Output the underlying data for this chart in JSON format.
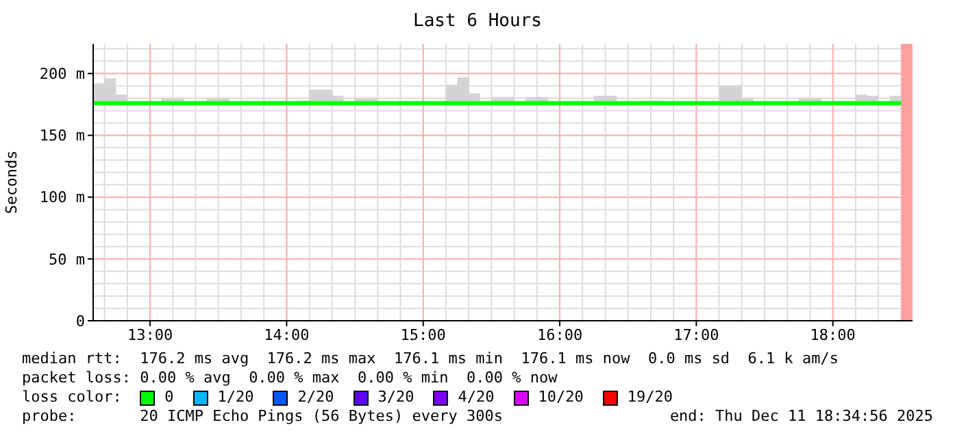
{
  "chart_data": {
    "type": "step",
    "title": "Last 6 Hours",
    "ylabel": "Seconds",
    "legend_title": "loss color:",
    "legend": "bottom",
    "grid": true,
    "x": [
      "2025-12-11T12:35",
      "2025-12-11T12:40",
      "2025-12-11T12:45",
      "2025-12-11T12:50",
      "2025-12-11T12:55",
      "2025-12-11T13:00",
      "2025-12-11T13:05",
      "2025-12-11T13:10",
      "2025-12-11T13:15",
      "2025-12-11T13:20",
      "2025-12-11T13:25",
      "2025-12-11T13:30",
      "2025-12-11T13:35",
      "2025-12-11T13:40",
      "2025-12-11T13:45",
      "2025-12-11T13:50",
      "2025-12-11T13:55",
      "2025-12-11T14:00",
      "2025-12-11T14:05",
      "2025-12-11T14:10",
      "2025-12-11T14:15",
      "2025-12-11T14:20",
      "2025-12-11T14:25",
      "2025-12-11T14:30",
      "2025-12-11T14:35",
      "2025-12-11T14:40",
      "2025-12-11T14:45",
      "2025-12-11T14:50",
      "2025-12-11T14:55",
      "2025-12-11T15:00",
      "2025-12-11T15:05",
      "2025-12-11T15:10",
      "2025-12-11T15:15",
      "2025-12-11T15:20",
      "2025-12-11T15:25",
      "2025-12-11T15:30",
      "2025-12-11T15:35",
      "2025-12-11T15:40",
      "2025-12-11T15:45",
      "2025-12-11T15:50",
      "2025-12-11T15:55",
      "2025-12-11T16:00",
      "2025-12-11T16:05",
      "2025-12-11T16:10",
      "2025-12-11T16:15",
      "2025-12-11T16:20",
      "2025-12-11T16:25",
      "2025-12-11T16:30",
      "2025-12-11T16:35",
      "2025-12-11T16:40",
      "2025-12-11T16:45",
      "2025-12-11T16:50",
      "2025-12-11T16:55",
      "2025-12-11T17:00",
      "2025-12-11T17:05",
      "2025-12-11T17:10",
      "2025-12-11T17:15",
      "2025-12-11T17:20",
      "2025-12-11T17:25",
      "2025-12-11T17:30",
      "2025-12-11T17:35",
      "2025-12-11T17:40",
      "2025-12-11T17:45",
      "2025-12-11T17:50",
      "2025-12-11T17:55",
      "2025-12-11T18:00",
      "2025-12-11T18:05",
      "2025-12-11T18:10",
      "2025-12-11T18:15",
      "2025-12-11T18:20",
      "2025-12-11T18:25",
      "2025-12-11T18:30"
    ],
    "xlim": [
      "2025-12-11T12:35",
      "2025-12-11T18:35"
    ],
    "xticks": [
      {
        "value": "2025-12-11T13:00",
        "label": "13:00"
      },
      {
        "value": "2025-12-11T14:00",
        "label": "14:00"
      },
      {
        "value": "2025-12-11T15:00",
        "label": "15:00"
      },
      {
        "value": "2025-12-11T16:00",
        "label": "16:00"
      },
      {
        "value": "2025-12-11T17:00",
        "label": "17:00"
      },
      {
        "value": "2025-12-11T18:00",
        "label": "18:00"
      }
    ],
    "ylim": [
      0,
      224
    ],
    "yticks": [
      0,
      {
        "value": 50,
        "label": "50 m"
      },
      {
        "value": 100,
        "label": "100 m"
      },
      {
        "value": 150,
        "label": "150 m"
      },
      {
        "value": 200,
        "label": "200 m"
      }
    ],
    "series": [
      {
        "name": "0",
        "color": "#00ff00",
        "values": [
          176,
          176,
          176,
          176,
          176,
          176,
          176,
          176,
          176,
          176,
          176,
          176,
          176,
          176,
          176,
          176,
          176,
          176,
          176,
          176,
          176,
          176,
          176,
          176,
          176,
          176,
          176,
          176,
          176,
          176,
          176,
          176,
          176,
          176,
          176,
          176,
          176,
          176,
          176,
          176,
          176,
          176,
          176,
          176,
          176,
          176,
          176,
          176,
          176,
          176,
          176,
          176,
          176,
          176,
          176,
          176,
          176,
          176,
          176,
          176,
          176,
          176,
          176,
          176,
          176,
          176,
          176,
          176,
          176,
          176,
          176,
          176
        ],
        "lower": [
          175,
          175,
          175,
          175,
          175,
          175,
          175,
          175,
          175,
          175,
          175,
          175,
          175,
          175,
          175,
          175,
          175,
          175,
          175,
          175,
          175,
          175,
          175,
          175,
          175,
          175,
          175,
          175,
          175,
          175,
          175,
          175,
          175,
          175,
          175,
          175,
          175,
          175,
          175,
          175,
          175,
          175,
          175,
          175,
          175,
          175,
          175,
          175,
          175,
          175,
          175,
          175,
          175,
          175,
          175,
          175,
          175,
          175,
          175,
          175,
          175,
          175,
          175,
          175,
          175,
          175,
          175,
          175,
          175,
          175,
          175,
          175
        ],
        "upper": [
          192,
          196,
          183,
          177,
          177,
          177,
          180,
          180,
          177,
          177,
          180,
          180,
          177,
          177,
          177,
          177,
          177,
          177,
          178,
          187,
          187,
          182,
          177,
          180,
          180,
          177,
          177,
          177,
          177,
          177,
          177,
          191,
          197,
          184,
          177,
          181,
          181,
          177,
          181,
          181,
          177,
          177,
          177,
          177,
          182,
          182,
          177,
          177,
          178,
          178,
          177,
          177,
          177,
          177,
          177,
          190,
          190,
          180,
          177,
          177,
          177,
          177,
          180,
          180,
          177,
          177,
          177,
          183,
          182,
          177,
          182,
          182
        ]
      },
      {
        "name": "1/20",
        "color": "#00b8ff",
        "values": [
          null,
          null,
          null,
          null,
          null,
          null,
          null,
          null,
          null,
          null,
          null,
          null,
          null,
          null,
          null,
          null,
          null,
          null,
          null,
          null,
          null,
          null,
          null,
          null,
          null,
          null,
          null,
          null,
          null,
          null,
          null,
          null,
          null,
          null,
          null,
          null,
          null,
          null,
          null,
          null,
          null,
          null,
          null,
          null,
          null,
          null,
          null,
          null,
          null,
          null,
          null,
          null,
          null,
          null,
          null,
          null,
          null,
          null,
          null,
          null,
          null,
          null,
          null,
          null,
          null,
          null,
          null,
          null,
          null,
          null,
          null,
          null
        ]
      },
      {
        "name": "2/20",
        "color": "#0059ff",
        "values": [
          null,
          null,
          null,
          null,
          null,
          null,
          null,
          null,
          null,
          null,
          null,
          null,
          null,
          null,
          null,
          null,
          null,
          null,
          null,
          null,
          null,
          null,
          null,
          null,
          null,
          null,
          null,
          null,
          null,
          null,
          null,
          null,
          null,
          null,
          null,
          null,
          null,
          null,
          null,
          null,
          null,
          null,
          null,
          null,
          null,
          null,
          null,
          null,
          null,
          null,
          null,
          null,
          null,
          null,
          null,
          null,
          null,
          null,
          null,
          null,
          null,
          null,
          null,
          null,
          null,
          null,
          null,
          null,
          null,
          null,
          null,
          null
        ]
      },
      {
        "name": "3/20",
        "color": "#5e00ff",
        "values": [
          null,
          null,
          null,
          null,
          null,
          null,
          null,
          null,
          null,
          null,
          null,
          null,
          null,
          null,
          null,
          null,
          null,
          null,
          null,
          null,
          null,
          null,
          null,
          null,
          null,
          null,
          null,
          null,
          null,
          null,
          null,
          null,
          null,
          null,
          null,
          null,
          null,
          null,
          null,
          null,
          null,
          null,
          null,
          null,
          null,
          null,
          null,
          null,
          null,
          null,
          null,
          null,
          null,
          null,
          null,
          null,
          null,
          null,
          null,
          null,
          null,
          null,
          null,
          null,
          null,
          null,
          null,
          null,
          null,
          null,
          null,
          null
        ]
      },
      {
        "name": "4/20",
        "color": "#7e00ff",
        "values": [
          null,
          null,
          null,
          null,
          null,
          null,
          null,
          null,
          null,
          null,
          null,
          null,
          null,
          null,
          null,
          null,
          null,
          null,
          null,
          null,
          null,
          null,
          null,
          null,
          null,
          null,
          null,
          null,
          null,
          null,
          null,
          null,
          null,
          null,
          null,
          null,
          null,
          null,
          null,
          null,
          null,
          null,
          null,
          null,
          null,
          null,
          null,
          null,
          null,
          null,
          null,
          null,
          null,
          null,
          null,
          null,
          null,
          null,
          null,
          null,
          null,
          null,
          null,
          null,
          null,
          null,
          null,
          null,
          null,
          null,
          null,
          null
        ]
      },
      {
        "name": "10/20",
        "color": "#dd00ff",
        "values": [
          null,
          null,
          null,
          null,
          null,
          null,
          null,
          null,
          null,
          null,
          null,
          null,
          null,
          null,
          null,
          null,
          null,
          null,
          null,
          null,
          null,
          null,
          null,
          null,
          null,
          null,
          null,
          null,
          null,
          null,
          null,
          null,
          null,
          null,
          null,
          null,
          null,
          null,
          null,
          null,
          null,
          null,
          null,
          null,
          null,
          null,
          null,
          null,
          null,
          null,
          null,
          null,
          null,
          null,
          null,
          null,
          null,
          null,
          null,
          null,
          null,
          null,
          null,
          null,
          null,
          null,
          null,
          null,
          null,
          null,
          null,
          null
        ]
      },
      {
        "name": "19/20",
        "color": "#ff0000",
        "values": [
          null,
          null,
          null,
          null,
          null,
          null,
          null,
          null,
          null,
          null,
          null,
          null,
          null,
          null,
          null,
          null,
          null,
          null,
          null,
          null,
          null,
          null,
          null,
          null,
          null,
          null,
          null,
          null,
          null,
          null,
          null,
          null,
          null,
          null,
          null,
          null,
          null,
          null,
          null,
          null,
          null,
          null,
          null,
          null,
          null,
          null,
          null,
          null,
          null,
          null,
          null,
          null,
          null,
          null,
          null,
          null,
          null,
          null,
          null,
          null,
          null,
          null,
          null,
          null,
          null,
          null,
          null,
          null,
          null,
          null,
          null,
          null
        ]
      }
    ],
    "bands": [
      {
        "axis": "x",
        "from": "2025-12-11T18:30",
        "to": "2025-12-11T18:35",
        "color": "#ffa0a0"
      }
    ],
    "annotations": [
      "median rtt:  176.2 ms avg  176.2 ms max  176.1 ms min  176.1 ms now  0.0 ms sd  6.1 k am/s",
      "packet loss: 0.00 % avg  0.00 % max  0.00 % min  0.00 % now",
      "probe:       20 ICMP Echo Pings (56 Bytes) every 300s",
      "end: Thu Dec 11 18:34:56 2025"
    ]
  }
}
